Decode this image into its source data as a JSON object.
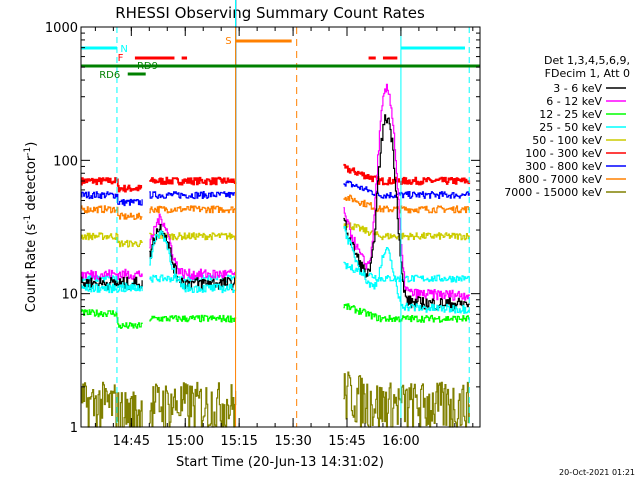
{
  "chart_data": {
    "type": "line",
    "title": "RHESSI Observing Summary Count Rates",
    "xlabel": "Start Time (20-Jun-13 14:31:02)",
    "ylabel_main": "Count Rate (s",
    "ylabel_sup1": "-1",
    "ylabel_mid": " detector",
    "ylabel_sup2": "-1",
    "ylabel_end": ")",
    "yscale": "log",
    "ylim": [
      1,
      1000
    ],
    "xlim_minutes": [
      0,
      111
    ],
    "xticks": [
      {
        "label": "14:45",
        "t": 14
      },
      {
        "label": "15:00",
        "t": 29
      },
      {
        "label": "15:15",
        "t": 44
      },
      {
        "label": "15:30",
        "t": 59
      },
      {
        "label": "15:45",
        "t": 74
      },
      {
        "label": "16:00",
        "t": 89
      }
    ],
    "yticks": [
      {
        "label": "1",
        "value": 1
      },
      {
        "label": "10",
        "value": 10
      },
      {
        "label": "100",
        "value": 100
      },
      {
        "label": "1000",
        "value": 1000
      }
    ],
    "legend_header": [
      "Det 1,3,4,5,6,9,",
      "FDecim 1, Att 0"
    ],
    "series": [
      {
        "name": "3 - 6 keV",
        "color": "#000000"
      },
      {
        "name": "6 - 12 keV",
        "color": "#ff00ff"
      },
      {
        "name": "12 - 25 keV",
        "color": "#00ff00"
      },
      {
        "name": "25 - 50 keV",
        "color": "#00ffff"
      },
      {
        "name": "50 - 100 keV",
        "color": "#cccc00"
      },
      {
        "name": "100 - 300 keV",
        "color": "#ff0000"
      },
      {
        "name": "300 - 800 keV",
        "color": "#0000ff"
      },
      {
        "name": "800 - 7000 keV",
        "color": "#ff8000"
      },
      {
        "name": "7000 - 15000 keV",
        "color": "#808000"
      }
    ],
    "segments": [
      [
        0,
        17
      ],
      [
        19,
        43
      ],
      [
        73,
        108
      ]
    ],
    "levels": [
      {
        "series": "100 - 300 keV",
        "value": 70
      },
      {
        "series": "300 - 800 keV",
        "value": 55
      },
      {
        "series": "800 - 7000 keV",
        "value": 43
      },
      {
        "series": "50 - 100 keV",
        "value": 27
      },
      {
        "series": "25 - 50 keV",
        "value": 13
      },
      {
        "series": "12 - 25 keV",
        "value": 6.5
      },
      {
        "series": "7000 - 15000 keV",
        "value": 1.5
      }
    ],
    "flare_peak": {
      "time_min": 85,
      "value_3_6": 200,
      "value_6_12": 330
    },
    "annotations": [
      {
        "text": "N",
        "color": "#00ffff"
      },
      {
        "text": "F",
        "color": "#ff0000"
      },
      {
        "text": "RD9",
        "color": "#008000"
      },
      {
        "text": "RD6",
        "color": "#008000"
      },
      {
        "text": "S",
        "color": "#ff8000"
      }
    ],
    "saa_interval": [
      43,
      60
    ],
    "night_markers": [
      0,
      10,
      89,
      108
    ],
    "timestamp": "20-Oct-2021 01:21"
  }
}
